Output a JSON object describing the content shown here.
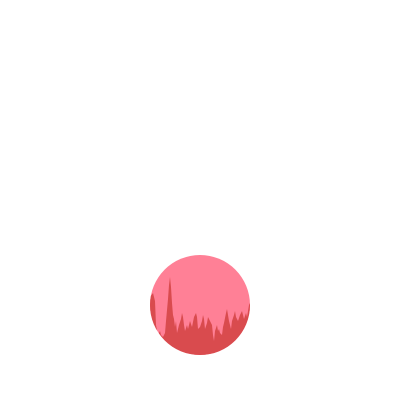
{
  "canvas": {
    "background": "#ffffff"
  },
  "badge": {
    "icon": "city-skyline-icon",
    "circle_color": "#ff8096",
    "skyline_color": "#d94b4e"
  }
}
